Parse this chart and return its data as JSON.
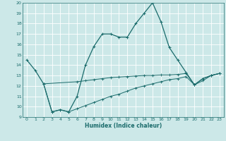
{
  "xlabel": "Humidex (Indice chaleur)",
  "bg_color": "#cce8e8",
  "grid_color": "#ffffff",
  "grid_minor_color": "#ddf0f0",
  "line_color": "#1a6b6b",
  "xlim": [
    -0.5,
    23.5
  ],
  "ylim": [
    9,
    20
  ],
  "xticks": [
    0,
    1,
    2,
    3,
    4,
    5,
    6,
    7,
    8,
    9,
    10,
    11,
    12,
    13,
    14,
    15,
    16,
    17,
    18,
    19,
    20,
    21,
    22,
    23
  ],
  "yticks": [
    9,
    10,
    11,
    12,
    13,
    14,
    15,
    16,
    17,
    18,
    19,
    20
  ],
  "line1_x": [
    0,
    1,
    2,
    3,
    4,
    5,
    6,
    7,
    8,
    9,
    10,
    11,
    12,
    13,
    14,
    15,
    16,
    17,
    18,
    19,
    20,
    21,
    22,
    23
  ],
  "line1_y": [
    14.5,
    13.5,
    12.2,
    9.5,
    9.7,
    9.5,
    11.0,
    14.0,
    15.8,
    17.0,
    17.0,
    16.7,
    16.7,
    18.0,
    19.0,
    20.0,
    18.2,
    15.7,
    14.5,
    13.3,
    12.1,
    12.7,
    13.0,
    13.2
  ],
  "line2_x": [
    2,
    6,
    7,
    8,
    9,
    10,
    11,
    12,
    13,
    14,
    15,
    16,
    17,
    18,
    19,
    20,
    21,
    22,
    23
  ],
  "line2_y": [
    12.2,
    12.4,
    12.5,
    12.6,
    12.7,
    12.8,
    12.85,
    12.9,
    12.95,
    13.0,
    13.0,
    13.05,
    13.05,
    13.1,
    13.2,
    12.1,
    12.7,
    13.0,
    13.2
  ],
  "line3_x": [
    2,
    3,
    4,
    5,
    6,
    7,
    8,
    9,
    10,
    11,
    12,
    13,
    14,
    15,
    16,
    17,
    18,
    19,
    20,
    21,
    22,
    23
  ],
  "line3_y": [
    12.2,
    9.5,
    9.7,
    9.5,
    9.8,
    10.1,
    10.4,
    10.7,
    11.0,
    11.2,
    11.5,
    11.8,
    12.0,
    12.2,
    12.4,
    12.6,
    12.7,
    12.9,
    12.1,
    12.5,
    13.0,
    13.2
  ]
}
